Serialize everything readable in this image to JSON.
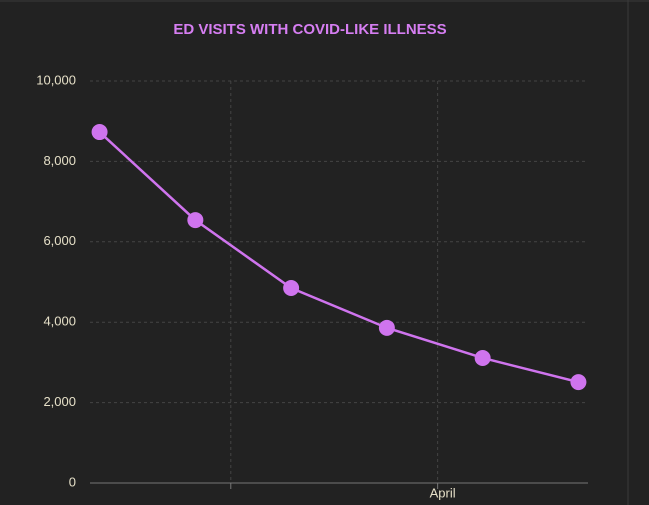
{
  "chart_data": {
    "type": "line",
    "title": "ED VISITS WITH COVID-LIKE ILLNESS",
    "x": [
      0,
      1,
      2,
      3,
      4,
      5
    ],
    "xlim": [
      -0.1,
      5.1
    ],
    "xticks": [
      {
        "value": 1.37,
        "label": null
      },
      {
        "value": 3.53,
        "label": "April"
      }
    ],
    "series": [
      {
        "name": null,
        "color": "#cf74ee",
        "values": [
          8730,
          6540,
          4850,
          3860,
          3110,
          2510
        ]
      }
    ],
    "ylim": [
      0,
      10000
    ],
    "yticks": [
      {
        "value": 0,
        "label": "0"
      },
      {
        "value": 2000,
        "label": "2,000"
      },
      {
        "value": 4000,
        "label": "4,000"
      },
      {
        "value": 6000,
        "label": "6,000"
      },
      {
        "value": 8000,
        "label": "8,000"
      },
      {
        "value": 10000,
        "label": "10,000"
      }
    ],
    "grid": true
  }
}
